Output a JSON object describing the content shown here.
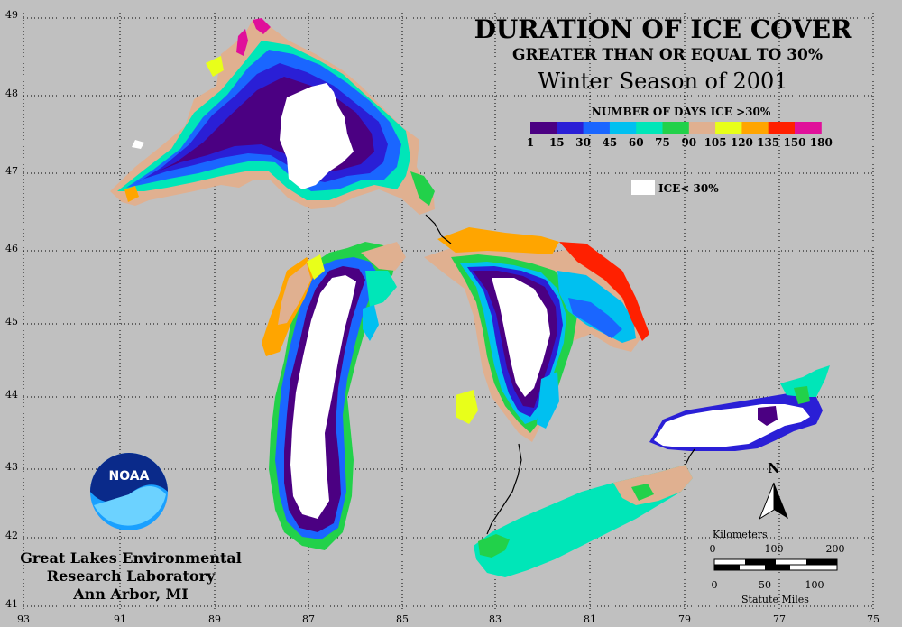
{
  "title": "DURATION OF ICE COVER",
  "subtitle": "GREATER THAN OR EQUAL TO 30%",
  "season": "Winter Season of 2001",
  "legend": {
    "heading": "NUMBER OF DAYS ICE >30%",
    "colors": [
      "#4b0082",
      "#2a1fd6",
      "#1a66ff",
      "#00c0f0",
      "#00e6b8",
      "#22d14a",
      "#e0b090",
      "#e8ff1a",
      "#ffa500",
      "#ff2000",
      "#e0109a"
    ],
    "labels": [
      "1",
      "15",
      "30",
      "45",
      "60",
      "75",
      "90",
      "105",
      "120",
      "135",
      "150",
      "180"
    ],
    "no_ice_label": "ICE< 30%",
    "no_ice_color": "#ffffff"
  },
  "axes": {
    "lat_labels": [
      "49",
      "48",
      "47",
      "46",
      "45",
      "44",
      "43",
      "42",
      "41"
    ],
    "lon_labels": [
      "93",
      "91",
      "89",
      "87",
      "85",
      "83",
      "81",
      "79",
      "77",
      "75"
    ]
  },
  "logo_text": "NOAA",
  "credit": [
    "Great Lakes Environmental",
    "Research Laboratory",
    "Ann Arbor, MI"
  ],
  "north_label": "N",
  "scale": {
    "km_label": "Kilometers",
    "km_ticks": [
      "0",
      "100",
      "200"
    ],
    "mi_ticks": [
      "0",
      "50",
      "100"
    ],
    "mi_label": "Statute Miles"
  }
}
